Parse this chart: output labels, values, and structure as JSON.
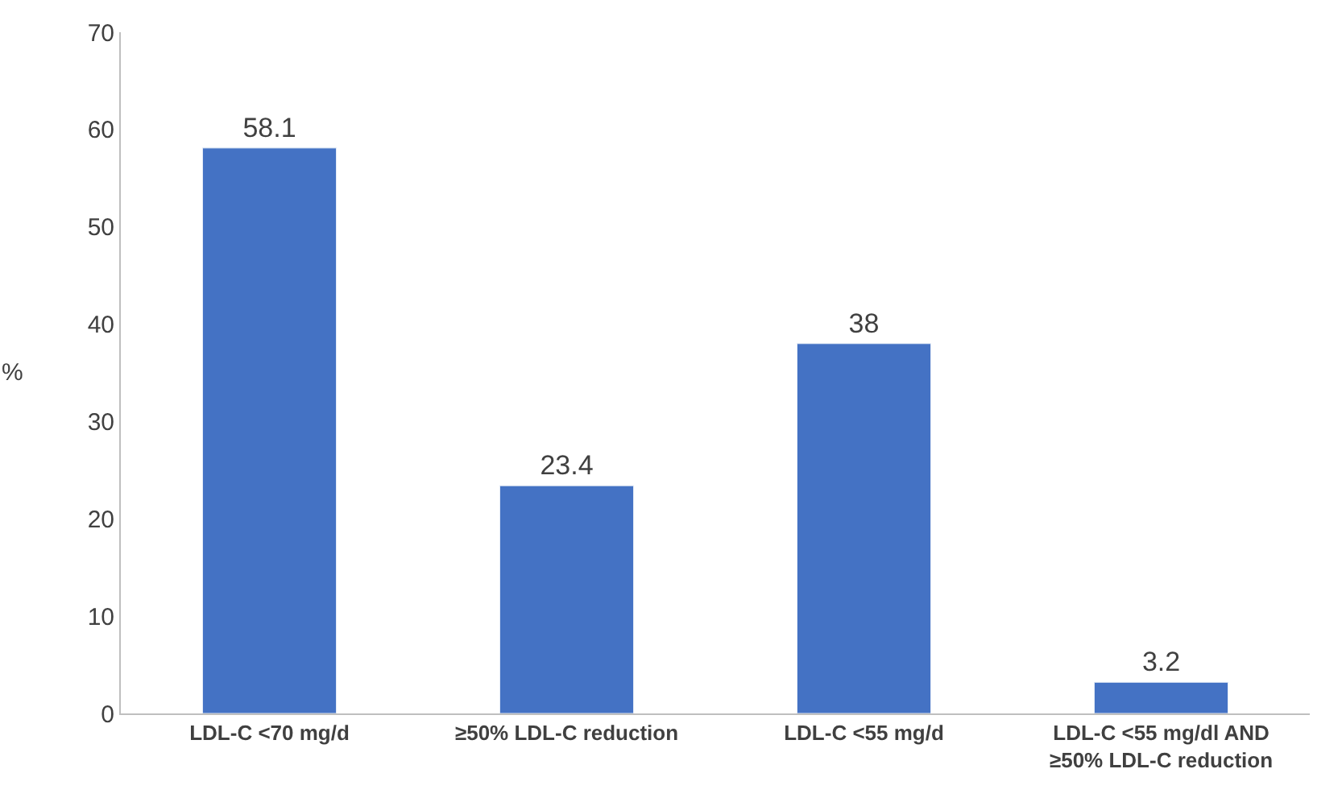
{
  "chart_data": {
    "type": "bar",
    "ylabel": "%",
    "categories": [
      "LDL-C <70 mg/d",
      "≥50% LDL-C reduction",
      "LDL-C <55 mg/d",
      "LDL-C <55 mg/dl AND\n≥50% LDL-C reduction"
    ],
    "values": [
      58.1,
      23.4,
      38,
      3.2
    ],
    "color": "#4472c4",
    "ylim": [
      0,
      70
    ],
    "yticks": [
      0,
      10,
      20,
      30,
      40,
      50,
      60,
      70
    ],
    "data_labels": true,
    "grid": false
  }
}
